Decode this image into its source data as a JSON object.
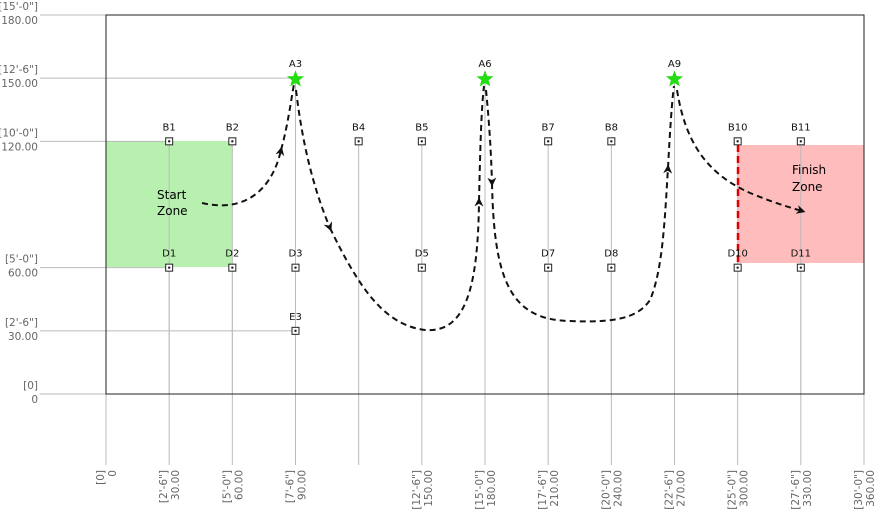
{
  "colors": {
    "start_zone": "#b8f0b0",
    "finish_zone": "#ffbcbc",
    "finish_line": "#e00000",
    "star": "#22dd11",
    "path": "#111111",
    "grid": "#bbbbbb",
    "frame": "#222222",
    "axis_text": "#666666"
  },
  "y_axis": [
    {
      "ft": "[15'-0\"]",
      "val": "180.00"
    },
    {
      "ft": "[12'-6\"]",
      "val": "150.00"
    },
    {
      "ft": "[10'-0\"]",
      "val": "120.00"
    },
    {
      "ft": "[5'-0\"]",
      "val": "60.00"
    },
    {
      "ft": "[2'-6\"]",
      "val": "30.00"
    },
    {
      "ft": "[0]",
      "val": "0"
    }
  ],
  "x_axis": [
    {
      "ft": "[0]",
      "val": "0"
    },
    {
      "ft": "[2'-6\"]",
      "val": "30.00"
    },
    {
      "ft": "[5'-0\"]",
      "val": "60.00"
    },
    {
      "ft": "[7'-6\"]",
      "val": "90.00"
    },
    {
      "ft": "[12'-6\"]",
      "val": "150.00"
    },
    {
      "ft": "[15'-0\"]",
      "val": "180.00"
    },
    {
      "ft": "[17'-6\"]",
      "val": "210.00"
    },
    {
      "ft": "[20'-0\"]",
      "val": "240.00"
    },
    {
      "ft": "[22'-6\"]",
      "val": "270.00"
    },
    {
      "ft": "[25'-0\"]",
      "val": "300.00"
    },
    {
      "ft": "[27'-6\"]",
      "val": "330.00"
    },
    {
      "ft": "[30'-0\"]",
      "val": "360.00"
    }
  ],
  "points": [
    {
      "id": "B1",
      "x": 30,
      "y": 120
    },
    {
      "id": "B2",
      "x": 60,
      "y": 120
    },
    {
      "id": "B4",
      "x": 120,
      "y": 120
    },
    {
      "id": "B5",
      "x": 150,
      "y": 120
    },
    {
      "id": "B7",
      "x": 210,
      "y": 120
    },
    {
      "id": "B8",
      "x": 240,
      "y": 120
    },
    {
      "id": "B10",
      "x": 300,
      "y": 120
    },
    {
      "id": "B11",
      "x": 330,
      "y": 120
    },
    {
      "id": "D1",
      "x": 30,
      "y": 60
    },
    {
      "id": "D2",
      "x": 60,
      "y": 60
    },
    {
      "id": "D3",
      "x": 90,
      "y": 60
    },
    {
      "id": "D5",
      "x": 150,
      "y": 60
    },
    {
      "id": "D7",
      "x": 210,
      "y": 60
    },
    {
      "id": "D8",
      "x": 240,
      "y": 60
    },
    {
      "id": "D10",
      "x": 300,
      "y": 60
    },
    {
      "id": "D11",
      "x": 330,
      "y": 60
    },
    {
      "id": "E3",
      "x": 90,
      "y": 30
    }
  ],
  "stars": [
    {
      "id": "A3",
      "x": 90,
      "y": 150
    },
    {
      "id": "A6",
      "x": 180,
      "y": 150
    },
    {
      "id": "A9",
      "x": 270,
      "y": 150
    }
  ],
  "zones": {
    "start": {
      "line1": "Start",
      "line2": "Zone"
    },
    "finish": {
      "line1": "Finish",
      "line2": "Zone"
    }
  }
}
